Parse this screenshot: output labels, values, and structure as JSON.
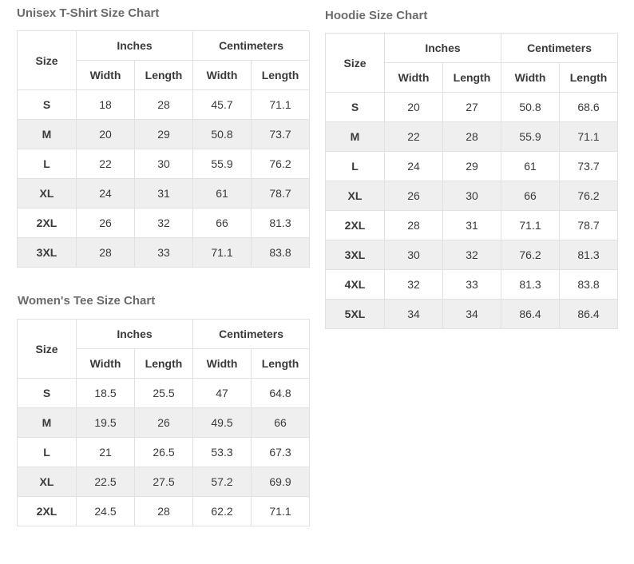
{
  "unisex": {
    "title": "Unisex T-Shirt Size Chart",
    "header": {
      "size": "Size",
      "inches": "Inches",
      "centimeters": "Centimeters",
      "width": "Width",
      "length": "Length"
    },
    "rows": [
      [
        "S",
        "18",
        "28",
        "45.7",
        "71.1"
      ],
      [
        "M",
        "20",
        "29",
        "50.8",
        "73.7"
      ],
      [
        "L",
        "22",
        "30",
        "55.9",
        "76.2"
      ],
      [
        "XL",
        "24",
        "31",
        "61",
        "78.7"
      ],
      [
        "2XL",
        "26",
        "32",
        "66",
        "81.3"
      ],
      [
        "3XL",
        "28",
        "33",
        "71.1",
        "83.8"
      ]
    ]
  },
  "hoodie": {
    "title": "Hoodie Size Chart",
    "header": {
      "size": "Size",
      "inches": "Inches",
      "centimeters": "Centimeters",
      "width": "Width",
      "length": "Length"
    },
    "rows": [
      [
        "S",
        "20",
        "27",
        "50.8",
        "68.6"
      ],
      [
        "M",
        "22",
        "28",
        "55.9",
        "71.1"
      ],
      [
        "L",
        "24",
        "29",
        "61",
        "73.7"
      ],
      [
        "XL",
        "26",
        "30",
        "66",
        "76.2"
      ],
      [
        "2XL",
        "28",
        "31",
        "71.1",
        "78.7"
      ],
      [
        "3XL",
        "30",
        "32",
        "76.2",
        "81.3"
      ],
      [
        "4XL",
        "32",
        "33",
        "81.3",
        "83.8"
      ],
      [
        "5XL",
        "34",
        "34",
        "86.4",
        "86.4"
      ]
    ]
  },
  "womens": {
    "title": "Women's Tee Size Chart",
    "header": {
      "size": "Size",
      "inches": "Inches",
      "centimeters": "Centimeters",
      "width": "Width",
      "length": "Length"
    },
    "rows": [
      [
        "S",
        "18.5",
        "25.5",
        "47",
        "64.8"
      ],
      [
        "M",
        "19.5",
        "26",
        "49.5",
        "66"
      ],
      [
        "L",
        "21",
        "26.5",
        "53.3",
        "67.3"
      ],
      [
        "XL",
        "22.5",
        "27.5",
        "57.2",
        "69.9"
      ],
      [
        "2XL",
        "24.5",
        "28",
        "62.2",
        "71.1"
      ]
    ]
  }
}
